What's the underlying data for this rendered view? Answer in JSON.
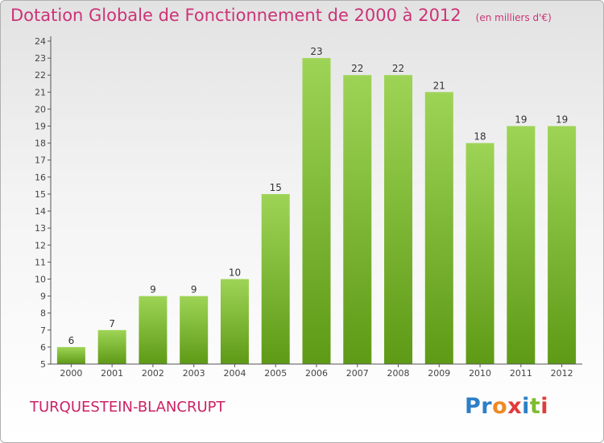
{
  "title": "Dotation Globale de Fonctionnement de 2000 à 2012",
  "unit_note": "(en milliers d'€)",
  "commune": "TURQUESTEIN-BLANCRUPT",
  "brand": {
    "text": "Proxiti",
    "letters": [
      "P",
      "r",
      "o",
      "x",
      "i",
      "t",
      "i"
    ],
    "colors": [
      "#2c7fc6",
      "#2c7fc6",
      "#f08a24",
      "#e23b3b",
      "#2c7fc6",
      "#7dbb2f",
      "#e23b3b"
    ]
  },
  "colors": {
    "title": "#cc3377",
    "bar_top": "#9ed456",
    "bar_bottom": "#5e9a16",
    "axis": "#555555"
  },
  "chart_data": {
    "type": "bar",
    "categories": [
      "2000",
      "2001",
      "2002",
      "2003",
      "2004",
      "2005",
      "2006",
      "2007",
      "2008",
      "2009",
      "2010",
      "2011",
      "2012"
    ],
    "values": [
      6,
      7,
      9,
      9,
      10,
      15,
      23,
      22,
      22,
      21,
      18,
      19,
      19
    ],
    "title": "Dotation Globale de Fonctionnement de 2000 à 2012",
    "unit": "(en milliers d'€)",
    "ylim": [
      5,
      24
    ],
    "yticks": [
      5,
      6,
      7,
      8,
      9,
      10,
      11,
      12,
      13,
      14,
      15,
      16,
      17,
      18,
      19,
      20,
      21,
      22,
      23,
      24
    ],
    "grid": false,
    "data_labels": true
  }
}
